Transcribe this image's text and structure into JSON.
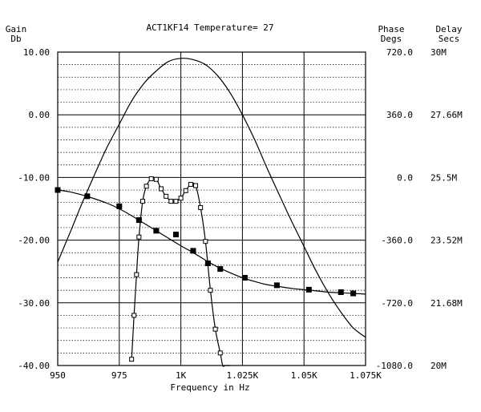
{
  "chart_data": {
    "type": "line",
    "title": "ACT1KF14 Temperature= 27",
    "xlabel": "Frequency in Hz",
    "x_ticks": [
      "950",
      "975",
      "1K",
      "1.025K",
      "1.05K",
      "1.075K"
    ],
    "x_tick_values": [
      950,
      975,
      1000,
      1025,
      1050,
      1075
    ],
    "xlim": [
      950,
      1075
    ],
    "left_axis": {
      "label_line1": "Gain",
      "label_line2": "Db",
      "ticks": [
        "10.00",
        "0.00",
        "-10.00",
        "-20.00",
        "-30.00",
        "-40.00"
      ],
      "tick_values": [
        10,
        0,
        -10,
        -20,
        -30,
        -40
      ],
      "ylim": [
        -40,
        10
      ]
    },
    "phase_axis": {
      "label_line1": "Phase",
      "label_line2": "Degs",
      "ticks": [
        "720.0",
        "360.0",
        "0.0",
        "-360.0",
        "-720.0",
        "-1080.0"
      ],
      "tick_values": [
        720,
        360,
        0,
        -360,
        -720,
        -1080
      ],
      "ylim": [
        -1080,
        720
      ]
    },
    "delay_axis": {
      "label_line1": "Delay",
      "label_line2": "Secs",
      "ticks": [
        "30M",
        "27.66M",
        "25.5M",
        "23.52M",
        "21.68M",
        "20M"
      ]
    },
    "grid": true,
    "series": [
      {
        "marker": "none",
        "x": [
          950,
          955,
          960,
          965,
          970,
          975,
          980,
          985,
          990,
          995,
          1000,
          1005,
          1010,
          1015,
          1020,
          1025,
          1030,
          1035,
          1040,
          1045,
          1050,
          1055,
          1060,
          1065,
          1070,
          1075
        ],
        "y": [
          -23.5,
          -18.8,
          -14.0,
          -9.5,
          -5.2,
          -1.5,
          2.2,
          5.0,
          7.0,
          8.5,
          9.0,
          8.8,
          8.0,
          6.2,
          3.5,
          0.0,
          -4.0,
          -8.5,
          -12.8,
          -17.0,
          -21.0,
          -25.0,
          -28.5,
          -31.5,
          -34.0,
          -35.5
        ]
      },
      {
        "marker": "open-square",
        "x": [
          980,
          981,
          982,
          983,
          984.5,
          986,
          988,
          990,
          992,
          994,
          996,
          998,
          1000,
          1002,
          1004,
          1006,
          1008,
          1010,
          1012,
          1014,
          1016,
          1017,
          1018,
          1019,
          1020
        ],
        "y": [
          -39.0,
          -32.0,
          -25.5,
          -19.5,
          -13.8,
          -11.4,
          -10.2,
          -10.3,
          -11.8,
          -13.0,
          -13.8,
          -13.8,
          -13.3,
          -12.1,
          -11.1,
          -11.3,
          -14.8,
          -20.2,
          -28.0,
          -34.2,
          -38.0,
          -40.0,
          -40.0,
          -40.0,
          -40.0
        ]
      },
      {
        "marker": "filled-square",
        "x": [
          950,
          955,
          960,
          965,
          970,
          975,
          980,
          985,
          990,
          995,
          1000,
          1005,
          1010,
          1015,
          1020,
          1025,
          1030,
          1035,
          1040,
          1045,
          1050,
          1055,
          1060,
          1065,
          1070,
          1075
        ],
        "y": [
          -12.0,
          -12.3,
          -12.8,
          -13.4,
          -14.1,
          -15.0,
          -16.1,
          -17.3,
          -18.5,
          -19.7,
          -20.9,
          -22.0,
          -23.2,
          -24.3,
          -25.2,
          -26.0,
          -26.6,
          -27.1,
          -27.4,
          -27.7,
          -27.9,
          -28.1,
          -28.3,
          -28.4,
          -28.5,
          -28.6
        ],
        "marker_x": [
          950,
          962,
          975,
          983,
          990,
          998,
          1005,
          1011,
          1016,
          1026,
          1039,
          1052,
          1065,
          1070
        ],
        "marker_y": [
          -12.0,
          -13.0,
          -14.6,
          -16.8,
          -18.5,
          -19.1,
          -21.7,
          -23.7,
          -24.6,
          -26.0,
          -27.2,
          -27.9,
          -28.3,
          -28.5
        ]
      }
    ]
  }
}
